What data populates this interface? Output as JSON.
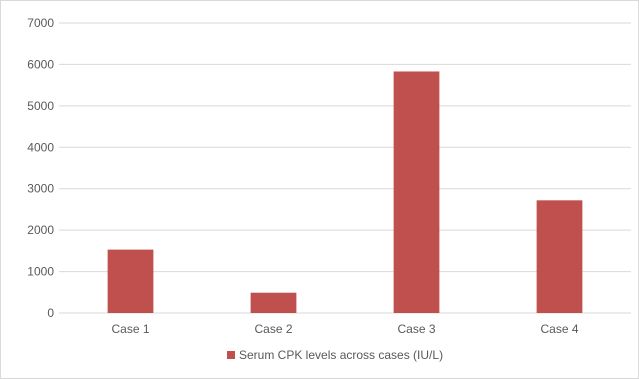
{
  "chart_data": {
    "type": "bar",
    "categories": [
      "Case 1",
      "Case 2",
      "Case 3",
      "Case 4"
    ],
    "series": [
      {
        "name": "Serum CPK levels across cases (IU/L)",
        "values": [
          1530,
          490,
          5830,
          2720
        ],
        "color": "#c0504d"
      }
    ],
    "ylim": [
      0,
      7000
    ],
    "yticks": [
      "0",
      "1000",
      "2000",
      "3000",
      "4000",
      "5000",
      "6000",
      "7000"
    ],
    "grid": true,
    "legend": "bottom"
  }
}
